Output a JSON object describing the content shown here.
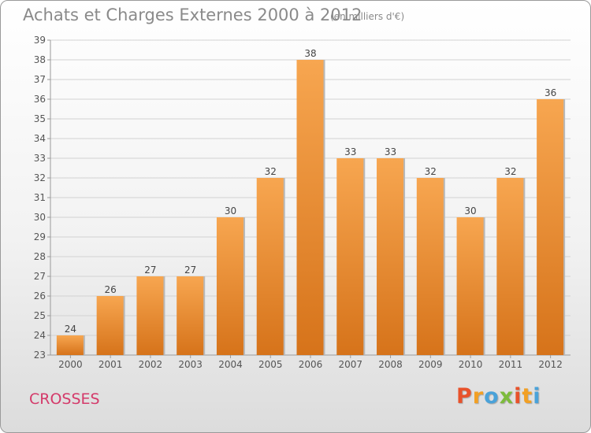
{
  "header": {
    "title": "Achats et Charges Externes 2000 à 2012",
    "subtitle": "(en milliers d'€)"
  },
  "footer": {
    "commune": "CROSSES",
    "logo": "Proxiti",
    "logo_colors": [
      "#e8522b",
      "#f2a024",
      "#4aa2d9",
      "#7dbb3c",
      "#e8522b",
      "#f2a024",
      "#4aa2d9"
    ]
  },
  "colors": {
    "bar_light": "#f7a650",
    "bar_dark": "#d6731a",
    "grid": "#d2d2d2",
    "axis": "#9a9a9a"
  },
  "chart_data": {
    "type": "bar",
    "title": "Achats et Charges Externes 2000 à 2012",
    "subtitle": "(en milliers d'€)",
    "xlabel": "",
    "ylabel": "",
    "categories": [
      "2000",
      "2001",
      "2002",
      "2003",
      "2004",
      "2005",
      "2006",
      "2007",
      "2008",
      "2009",
      "2010",
      "2011",
      "2012"
    ],
    "values": [
      24,
      26,
      27,
      27,
      30,
      32,
      38,
      33,
      33,
      32,
      30,
      32,
      36
    ],
    "ylim": [
      23,
      39
    ],
    "yticks": [
      23,
      24,
      25,
      26,
      27,
      28,
      29,
      30,
      31,
      32,
      33,
      34,
      35,
      36,
      37,
      38,
      39
    ],
    "grid": true,
    "data_labels": true
  }
}
